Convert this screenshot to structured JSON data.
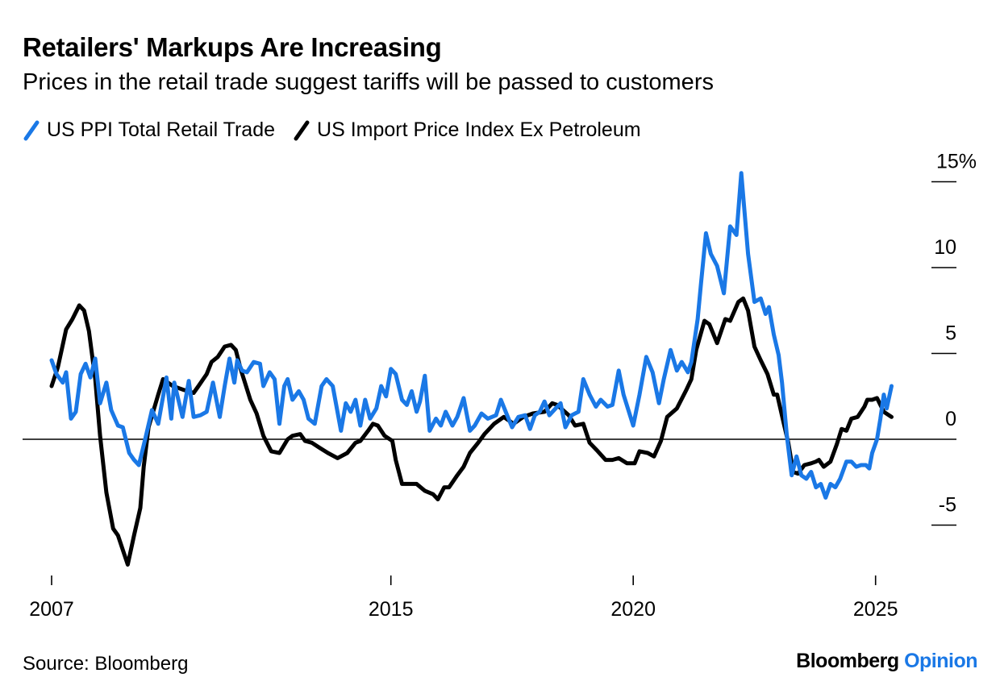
{
  "title": "Retailers' Markups Are Increasing",
  "subtitle": "Prices in the retail trade suggest tariffs will be passed to customers",
  "source": "Source: Bloomberg",
  "logo": {
    "brand": "Bloomberg",
    "product": "Opinion"
  },
  "chart_data": {
    "type": "line",
    "title": "Retailers' Markups Are Increasing",
    "xlabel": "",
    "ylabel": "",
    "ylim": [
      -7.5,
      15.8
    ],
    "xlim": [
      2008.0,
      2025.4
    ],
    "grid": false,
    "legend_position": "top-left",
    "y_ticks": [
      {
        "value": 15,
        "label": "15%"
      },
      {
        "value": 10,
        "label": "10"
      },
      {
        "value": 5,
        "label": "5"
      },
      {
        "value": 0,
        "label": "0"
      },
      {
        "value": -5,
        "label": "-5"
      }
    ],
    "x_ticks": [
      {
        "value": 2008.0,
        "label": "2007"
      },
      {
        "value": 2015.0,
        "label": "2015"
      },
      {
        "value": 2020.0,
        "label": "2020"
      },
      {
        "value": 2025.0,
        "label": "2025"
      }
    ],
    "series": [
      {
        "name": "US PPI Total Retail Trade",
        "color": "#1a78e6",
        "x": [
          2008.0,
          2008.1,
          2008.23,
          2008.3,
          2008.4,
          2008.5,
          2008.6,
          2008.7,
          2008.8,
          2008.9,
          2009.0,
          2009.13,
          2009.23,
          2009.37,
          2009.47,
          2009.6,
          2009.7,
          2009.8,
          2009.93,
          2010.07,
          2010.2,
          2010.37,
          2010.47,
          2010.53,
          2010.7,
          2010.83,
          2010.93,
          2011.07,
          2011.2,
          2011.33,
          2011.47,
          2011.57,
          2011.67,
          2011.77,
          2011.83,
          2011.93,
          2012.03,
          2012.17,
          2012.3,
          2012.37,
          2012.5,
          2012.6,
          2012.7,
          2012.8,
          2012.87,
          2012.97,
          2013.1,
          2013.2,
          2013.3,
          2013.43,
          2013.57,
          2013.67,
          2013.8,
          2013.97,
          2014.07,
          2014.17,
          2014.27,
          2014.37,
          2014.47,
          2014.57,
          2014.7,
          2014.8,
          2014.9,
          2015.0,
          2015.1,
          2015.23,
          2015.33,
          2015.43,
          2015.53,
          2015.6,
          2015.7,
          2015.8,
          2015.93,
          2016.03,
          2016.13,
          2016.27,
          2016.37,
          2016.5,
          2016.63,
          2016.73,
          2016.87,
          2017.0,
          2017.17,
          2017.27,
          2017.37,
          2017.5,
          2017.63,
          2017.77,
          2017.87,
          2017.97,
          2018.07,
          2018.17,
          2018.27,
          2018.4,
          2018.5,
          2018.6,
          2018.73,
          2018.87,
          2018.97,
          2019.1,
          2019.23,
          2019.33,
          2019.47,
          2019.57,
          2019.7,
          2019.8,
          2020.0,
          2020.13,
          2020.27,
          2020.4,
          2020.53,
          2020.63,
          2020.77,
          2020.9,
          2021.0,
          2021.13,
          2021.2,
          2021.33,
          2021.4,
          2021.5,
          2021.6,
          2021.73,
          2021.87,
          2022.0,
          2022.13,
          2022.23,
          2022.37,
          2022.5,
          2022.63,
          2022.73,
          2022.8,
          2022.9,
          2023.0,
          2023.07,
          2023.17,
          2023.27,
          2023.37,
          2023.47,
          2023.57,
          2023.67,
          2023.77,
          2023.87,
          2023.97,
          2024.07,
          2024.17,
          2024.27,
          2024.4,
          2024.5,
          2024.6,
          2024.7,
          2024.8,
          2024.87,
          2024.93,
          2025.03,
          2025.1,
          2025.17,
          2025.23,
          2025.33
        ],
        "values": [
          4.6,
          3.8,
          3.3,
          3.9,
          1.2,
          1.6,
          3.8,
          4.4,
          3.6,
          4.7,
          2.1,
          3.3,
          1.7,
          0.8,
          0.7,
          -0.8,
          -1.2,
          -1.5,
          0.0,
          1.7,
          0.9,
          3.6,
          1.2,
          3.3,
          1.3,
          3.4,
          1.3,
          1.4,
          1.6,
          3.3,
          1.3,
          3.1,
          4.7,
          3.3,
          4.6,
          4.0,
          3.9,
          4.5,
          4.4,
          3.1,
          3.9,
          3.5,
          0.9,
          3.1,
          3.5,
          2.3,
          2.8,
          2.3,
          1.2,
          0.9,
          3.1,
          3.5,
          3.1,
          0.5,
          2.1,
          1.6,
          2.3,
          0.8,
          2.3,
          1.2,
          1.8,
          3.1,
          2.5,
          4.1,
          3.8,
          2.3,
          2.0,
          2.8,
          1.6,
          2.2,
          3.7,
          0.5,
          1.2,
          0.8,
          1.6,
          0.8,
          1.3,
          2.4,
          0.5,
          0.8,
          1.5,
          1.2,
          1.4,
          2.3,
          1.6,
          0.7,
          1.3,
          1.4,
          0.6,
          1.4,
          1.6,
          2.2,
          1.4,
          1.8,
          2.1,
          0.7,
          1.4,
          1.6,
          3.5,
          2.6,
          1.9,
          2.3,
          1.9,
          2.0,
          4.0,
          2.6,
          0.8,
          2.6,
          4.8,
          3.9,
          2.1,
          3.5,
          5.2,
          4.0,
          4.5,
          3.9,
          4.5,
          7.0,
          9.1,
          12.0,
          10.8,
          10.1,
          8.5,
          12.4,
          11.9,
          15.5,
          10.8,
          8.0,
          8.2,
          7.3,
          7.7,
          6.1,
          4.9,
          3.3,
          0.2,
          -2.1,
          -1.0,
          -2.1,
          -2.3,
          -1.9,
          -2.8,
          -2.6,
          -3.4,
          -2.6,
          -2.8,
          -2.3,
          -1.3,
          -1.3,
          -1.6,
          -1.5,
          -1.5,
          -1.7,
          -0.8,
          0.0,
          1.2,
          2.6,
          1.8,
          3.1
        ]
      },
      {
        "name": "US Import Price Index Ex Petroleum",
        "color": "#000000",
        "x": [
          2008.0,
          2008.13,
          2008.3,
          2008.43,
          2008.57,
          2008.67,
          2008.77,
          2008.9,
          2009.0,
          2009.13,
          2009.27,
          2009.37,
          2009.57,
          2009.7,
          2009.83,
          2009.9,
          2010.0,
          2010.2,
          2010.3,
          2010.5,
          2010.7,
          2010.93,
          2011.03,
          2011.2,
          2011.3,
          2011.43,
          2011.57,
          2011.7,
          2011.8,
          2011.9,
          2012.1,
          2012.23,
          2012.37,
          2012.53,
          2012.7,
          2012.87,
          2012.97,
          2013.13,
          2013.23,
          2013.37,
          2013.53,
          2013.7,
          2013.9,
          2014.1,
          2014.27,
          2014.37,
          2014.53,
          2014.63,
          2014.73,
          2014.87,
          2015.03,
          2015.1,
          2015.23,
          2015.43,
          2015.53,
          2015.7,
          2015.87,
          2015.97,
          2016.1,
          2016.2,
          2016.37,
          2016.5,
          2016.63,
          2016.8,
          2016.93,
          2017.13,
          2017.33,
          2017.53,
          2017.73,
          2017.93,
          2018.17,
          2018.33,
          2018.43,
          2018.67,
          2018.8,
          2018.97,
          2019.1,
          2019.27,
          2019.43,
          2019.57,
          2019.7,
          2019.87,
          2020.03,
          2020.13,
          2020.3,
          2020.43,
          2020.57,
          2020.7,
          2020.9,
          2021.1,
          2021.2,
          2021.3,
          2021.47,
          2021.57,
          2021.73,
          2021.9,
          2022.0,
          2022.17,
          2022.27,
          2022.37,
          2022.5,
          2022.63,
          2022.77,
          2022.9,
          2022.97,
          2023.1,
          2023.2,
          2023.3,
          2023.4,
          2023.53,
          2023.67,
          2023.77,
          2023.83,
          2023.93,
          2024.07,
          2024.2,
          2024.3,
          2024.4,
          2024.5,
          2024.63,
          2024.77,
          2024.83,
          2024.93,
          2025.03,
          2025.17,
          2025.33
        ],
        "values": [
          3.1,
          4.2,
          6.4,
          7.0,
          7.8,
          7.5,
          6.3,
          3.5,
          0.2,
          -3.1,
          -5.2,
          -5.6,
          -7.3,
          -5.6,
          -4.0,
          -1.6,
          0.7,
          2.6,
          3.5,
          3.1,
          2.9,
          2.7,
          3.1,
          3.8,
          4.5,
          4.8,
          5.4,
          5.5,
          5.2,
          4.1,
          2.3,
          1.5,
          0.2,
          -0.7,
          -0.8,
          0.0,
          0.2,
          0.3,
          -0.1,
          -0.2,
          -0.5,
          -0.8,
          -1.1,
          -0.8,
          -0.2,
          -0.1,
          0.5,
          0.9,
          0.8,
          0.2,
          -0.1,
          -1.2,
          -2.6,
          -2.6,
          -2.6,
          -3.0,
          -3.2,
          -3.5,
          -2.8,
          -2.8,
          -2.1,
          -1.6,
          -0.8,
          -0.2,
          0.3,
          0.9,
          1.3,
          0.9,
          1.3,
          1.5,
          1.6,
          2.1,
          2.0,
          1.4,
          0.8,
          0.9,
          -0.2,
          -0.7,
          -1.2,
          -1.2,
          -1.1,
          -1.4,
          -1.4,
          -0.7,
          -0.8,
          -1.0,
          -0.1,
          1.3,
          1.8,
          2.9,
          3.5,
          5.2,
          6.9,
          6.7,
          5.6,
          7.0,
          6.9,
          8.0,
          8.2,
          7.5,
          5.4,
          4.6,
          3.8,
          2.6,
          2.6,
          1.0,
          -0.2,
          -1.9,
          -2.0,
          -1.5,
          -1.4,
          -1.3,
          -1.2,
          -1.6,
          -1.3,
          -0.3,
          0.6,
          0.5,
          1.2,
          1.3,
          1.9,
          2.3,
          2.3,
          2.4,
          1.6,
          1.3
        ]
      }
    ]
  }
}
